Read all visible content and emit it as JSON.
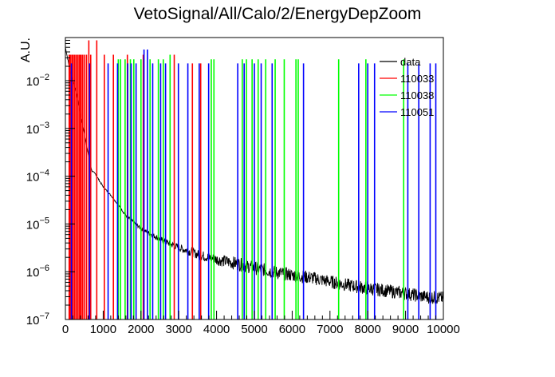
{
  "chart_data": {
    "type": "line",
    "title": "VetoSignal/All/Calo/2/EnergyDepZoom",
    "xlabel": "",
    "ylabel": "A.U.",
    "xlim": [
      0,
      10000
    ],
    "ylim": [
      1e-07,
      0.08
    ],
    "yscale": "log",
    "x_ticks": [
      0,
      1000,
      2000,
      3000,
      4000,
      5000,
      6000,
      7000,
      8000,
      9000,
      10000
    ],
    "y_ticks": [
      {
        "value": 1e-07,
        "base": "10",
        "exp": "−7"
      },
      {
        "value": 1e-06,
        "base": "10",
        "exp": "−6"
      },
      {
        "value": 1e-05,
        "base": "10",
        "exp": "−5"
      },
      {
        "value": 0.0001,
        "base": "10",
        "exp": "−4"
      },
      {
        "value": 0.001,
        "base": "10",
        "exp": "−3"
      },
      {
        "value": 0.01,
        "base": "10",
        "exp": "−2"
      }
    ],
    "legend_position": "top-right",
    "series": [
      {
        "name": "data",
        "color": "#000000",
        "style": "histogram",
        "x": [
          0,
          100,
          200,
          300,
          400,
          500,
          600,
          700,
          800,
          900,
          1000,
          1200,
          1400,
          1600,
          1800,
          2000,
          2500,
          3000,
          3500,
          4000,
          4500,
          5000,
          5500,
          6000,
          6500,
          7000,
          7500,
          8000,
          8500,
          9000,
          9500,
          10000
        ],
        "y": [
          0.05,
          0.02,
          0.01,
          0.005,
          0.002,
          0.0008,
          0.0003,
          0.00013,
          0.00011,
          8e-05,
          6e-05,
          4e-05,
          2.5e-05,
          1.5e-05,
          1.1e-05,
          8e-06,
          4.8e-06,
          3.2e-06,
          2.3e-06,
          1.8e-06,
          1.5e-06,
          1.2e-06,
          1e-06,
          8.5e-07,
          7.5e-07,
          6.2e-07,
          5.2e-07,
          4.5e-07,
          4e-07,
          3.5e-07,
          3e-07,
          2.8e-07
        ]
      },
      {
        "name": "110033",
        "color": "#ff0000",
        "style": "spikes",
        "x": [
          100,
          130,
          170,
          200,
          240,
          280,
          320,
          360,
          390,
          420,
          460,
          510,
          560,
          620,
          670,
          830,
          1030,
          1270,
          1640,
          2060,
          2880,
          3360,
          3580
        ],
        "y": [
          0.035,
          0.035,
          0.035,
          0.035,
          0.035,
          0.035,
          0.035,
          0.035,
          0.035,
          0.035,
          0.035,
          0.035,
          0.035,
          0.07,
          0.035,
          0.07,
          0.035,
          0.035,
          0.035,
          0.035,
          0.035,
          0.023,
          0.023
        ]
      },
      {
        "name": "110038",
        "color": "#00ff00",
        "style": "spikes",
        "x": [
          1400,
          1460,
          1580,
          1720,
          1810,
          2000,
          2240,
          2460,
          2590,
          2770,
          3860,
          3930,
          4680,
          4790,
          4940,
          5100,
          5300,
          5550,
          5790,
          6100,
          6160,
          7230,
          7950,
          8950
        ],
        "y": [
          0.028,
          0.028,
          0.028,
          0.028,
          0.028,
          0.028,
          0.028,
          0.028,
          0.028,
          0.035,
          0.028,
          0.028,
          0.028,
          0.028,
          0.028,
          0.028,
          0.028,
          0.028,
          0.028,
          0.028,
          0.028,
          0.028,
          0.028,
          0.028
        ]
      },
      {
        "name": "110051",
        "color": "#0000ff",
        "style": "spikes",
        "x": [
          160,
          640,
          1130,
          1380,
          1650,
          1740,
          1870,
          2080,
          2170,
          2310,
          2520,
          2650,
          2990,
          3240,
          3540,
          3790,
          4560,
          4730,
          5000,
          5180,
          5470,
          6300,
          7760,
          8000,
          8180,
          9060,
          9350,
          9650,
          9800
        ],
        "y": [
          0.023,
          0.023,
          0.023,
          0.023,
          0.023,
          0.023,
          0.023,
          0.045,
          0.045,
          0.023,
          0.023,
          0.023,
          0.023,
          0.023,
          0.023,
          0.023,
          0.023,
          0.023,
          0.023,
          0.023,
          0.023,
          0.023,
          0.023,
          0.023,
          0.023,
          0.023,
          0.023,
          0.023,
          0.023
        ]
      }
    ]
  }
}
